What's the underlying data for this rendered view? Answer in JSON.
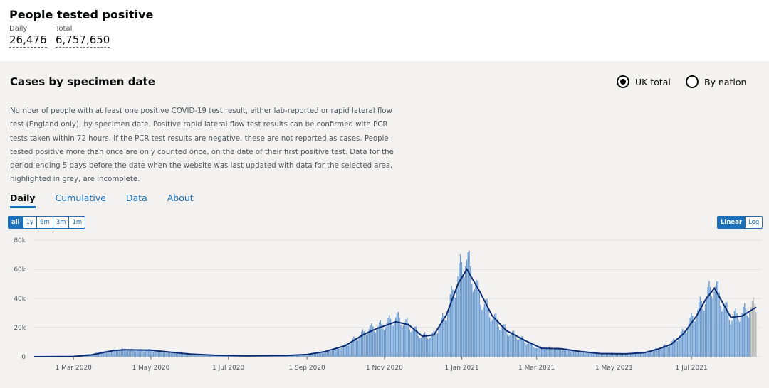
{
  "header": {
    "title": "People tested positive",
    "daily_label": "Daily",
    "daily_value": "26,476",
    "total_label": "Total",
    "total_value": "6,757,650"
  },
  "card": {
    "title": "Cases by specimen date",
    "radio_uk": "UK total",
    "radio_nation": "By nation",
    "description": "Number of people with at least one positive COVID-19 test result, either lab-reported or rapid lateral flow test (England only), by specimen date. Positive rapid lateral flow test results can be confirmed with PCR tests taken within 72 hours. If the PCR test results are negative, these are not reported as cases. People tested positive more than once are only counted once, on the date of their first positive test. Data for the period ending 5 days before the date when the website was last updated with data for the selected area, highlighted in grey, are incomplete.",
    "tabs": [
      "Daily",
      "Cumulative",
      "Data",
      "About"
    ],
    "range_buttons": [
      "all",
      "1y",
      "6m",
      "3m",
      "1m"
    ],
    "scale_buttons": [
      "Linear",
      "Log"
    ]
  },
  "colors": {
    "bar": "#6e9dd1",
    "bar_incomplete": "#bababa",
    "avg_line": "#0c2d72",
    "accent": "#1d70b8"
  },
  "chart_data": {
    "type": "bar",
    "x_start": "2020-01-30",
    "x_end": "2021-08-21",
    "ylim": [
      0,
      80000
    ],
    "yticks": [
      0,
      20000,
      40000,
      60000,
      80000
    ],
    "ytick_labels": [
      "0",
      "20k",
      "40k",
      "60k",
      "80k"
    ],
    "xticks": [
      "2020-03-01",
      "2020-05-01",
      "2020-07-01",
      "2020-09-01",
      "2020-11-01",
      "2021-01-01",
      "2021-03-01",
      "2021-05-01",
      "2021-07-01"
    ],
    "xtick_labels": [
      "1 Mar 2020",
      "1 May 2020",
      "1 Jul 2020",
      "1 Sep 2020",
      "1 Nov 2020",
      "1 Jan 2021",
      "1 Mar 2021",
      "1 May 2021",
      "1 Jul 2021"
    ],
    "incomplete_from": "2021-08-17",
    "series": [
      {
        "kind": "bars",
        "points": [
          [
            "2020-01-30",
            0
          ],
          [
            "2020-03-01",
            300
          ],
          [
            "2020-03-20",
            2500
          ],
          [
            "2020-04-05",
            4800
          ],
          [
            "2020-04-20",
            4600
          ],
          [
            "2020-05-01",
            4500
          ],
          [
            "2020-05-15",
            3000
          ],
          [
            "2020-06-01",
            1800
          ],
          [
            "2020-06-20",
            1000
          ],
          [
            "2020-07-15",
            700
          ],
          [
            "2020-08-10",
            900
          ],
          [
            "2020-08-31",
            1300
          ],
          [
            "2020-09-15",
            3500
          ],
          [
            "2020-10-01",
            7500
          ],
          [
            "2020-10-10",
            13000
          ],
          [
            "2020-10-20",
            19000
          ],
          [
            "2020-11-01",
            22000
          ],
          [
            "2020-11-10",
            27000
          ],
          [
            "2020-11-20",
            22000
          ],
          [
            "2020-12-01",
            14000
          ],
          [
            "2020-12-10",
            15000
          ],
          [
            "2020-12-20",
            30000
          ],
          [
            "2020-12-29",
            55000
          ],
          [
            "2021-01-04",
            69000
          ],
          [
            "2021-01-15",
            42000
          ],
          [
            "2021-01-25",
            28000
          ],
          [
            "2021-02-05",
            18000
          ],
          [
            "2021-02-20",
            11000
          ],
          [
            "2021-03-01",
            6500
          ],
          [
            "2021-03-20",
            5500
          ],
          [
            "2021-04-05",
            3500
          ],
          [
            "2021-04-20",
            2200
          ],
          [
            "2021-05-10",
            2100
          ],
          [
            "2021-05-25",
            2800
          ],
          [
            "2021-06-05",
            5500
          ],
          [
            "2021-06-15",
            9000
          ],
          [
            "2021-06-25",
            17000
          ],
          [
            "2021-07-05",
            31000
          ],
          [
            "2021-07-15",
            44000
          ],
          [
            "2021-07-19",
            50000
          ],
          [
            "2021-07-25",
            38000
          ],
          [
            "2021-08-01",
            27000
          ],
          [
            "2021-08-10",
            30000
          ],
          [
            "2021-08-17",
            34000
          ],
          [
            "2021-08-21",
            35000
          ]
        ]
      },
      {
        "kind": "line",
        "name": "7-day average",
        "points": [
          [
            "2020-01-30",
            0
          ],
          [
            "2020-03-01",
            200
          ],
          [
            "2020-03-15",
            1200
          ],
          [
            "2020-04-01",
            4200
          ],
          [
            "2020-04-10",
            4800
          ],
          [
            "2020-05-01",
            4500
          ],
          [
            "2020-05-15",
            3200
          ],
          [
            "2020-06-01",
            1800
          ],
          [
            "2020-06-20",
            1000
          ],
          [
            "2020-07-15",
            650
          ],
          [
            "2020-08-15",
            900
          ],
          [
            "2020-09-01",
            1500
          ],
          [
            "2020-09-15",
            3500
          ],
          [
            "2020-10-01",
            7500
          ],
          [
            "2020-10-15",
            15000
          ],
          [
            "2020-10-25",
            19000
          ],
          [
            "2020-11-10",
            24000
          ],
          [
            "2020-11-20",
            22000
          ],
          [
            "2020-12-01",
            14000
          ],
          [
            "2020-12-10",
            15000
          ],
          [
            "2020-12-20",
            29000
          ],
          [
            "2020-12-29",
            50000
          ],
          [
            "2021-01-05",
            60000
          ],
          [
            "2021-01-15",
            45000
          ],
          [
            "2021-01-25",
            28000
          ],
          [
            "2021-02-05",
            18000
          ],
          [
            "2021-02-20",
            11000
          ],
          [
            "2021-03-05",
            5800
          ],
          [
            "2021-03-20",
            5500
          ],
          [
            "2021-04-05",
            3500
          ],
          [
            "2021-04-20",
            2200
          ],
          [
            "2021-05-10",
            2000
          ],
          [
            "2021-05-25",
            2800
          ],
          [
            "2021-06-05",
            5300
          ],
          [
            "2021-06-15",
            8500
          ],
          [
            "2021-06-25",
            16000
          ],
          [
            "2021-07-05",
            28000
          ],
          [
            "2021-07-12",
            39000
          ],
          [
            "2021-07-19",
            47000
          ],
          [
            "2021-07-25",
            38000
          ],
          [
            "2021-08-01",
            27000
          ],
          [
            "2021-08-10",
            28000
          ],
          [
            "2021-08-21",
            34000
          ]
        ]
      }
    ]
  }
}
